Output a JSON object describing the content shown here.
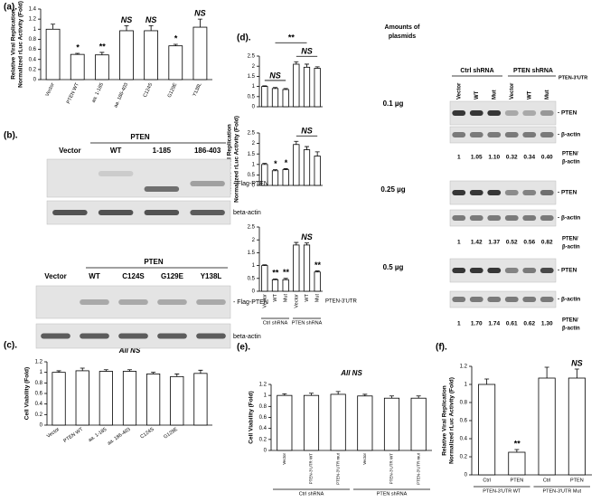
{
  "panel_labels": [
    "(a).",
    "(b).",
    "(c).",
    "(d).",
    "(e).",
    "(f)."
  ],
  "chart_data": [
    {
      "type": "bar",
      "ylabel": [
        "Relative Viral Replication",
        "Normalized rLuc Activity (Fold)"
      ],
      "categories": [
        "Vector",
        "PTEN WT",
        "aa. 1-185",
        "aa. 186-403",
        "C124S",
        "G129E",
        "Y138L"
      ],
      "values": [
        1,
        0.5,
        0.49,
        0.97,
        0.97,
        0.67,
        1.04
      ],
      "errors": [
        0.1,
        0.02,
        0.05,
        0.1,
        0.1,
        0.03,
        0.16
      ],
      "annotations": [
        null,
        "*",
        "**",
        "NS",
        "NS",
        "*",
        "NS"
      ],
      "ylim": [
        0,
        1.4
      ],
      "yticks": [
        0,
        0.2,
        0.4,
        0.6,
        0.8,
        1,
        1.2,
        1.4
      ],
      "color": "#ffffff"
    },
    {
      "type": "bar",
      "title": "All NS",
      "ylabel": [
        "Cell Viability (Fold)"
      ],
      "categories": [
        "Vector",
        "PTEN WT",
        "aa. 1-185",
        "aa. 186-403",
        "C124S",
        "G129E",
        null
      ],
      "values": [
        1,
        1.03,
        1.02,
        1.02,
        0.97,
        0.92,
        0.98
      ],
      "errors": [
        0.03,
        0.05,
        0.03,
        0.03,
        0.03,
        0.05,
        0.06
      ],
      "ylim": [
        0,
        1.2
      ],
      "yticks": [
        0,
        0.2,
        0.4,
        0.6,
        0.8,
        1,
        1.2
      ],
      "color": "#ffffff"
    },
    {
      "type": "bar",
      "values": [
        1,
        0.9,
        0.85,
        2.1,
        1.95,
        1.9
      ],
      "errors": [
        0.03,
        0.05,
        0.05,
        0.12,
        0.15,
        0.07
      ],
      "brackets": [
        {
          "text": "NS",
          "from": 0,
          "to": 2
        },
        {
          "text": "NS",
          "from": 3,
          "to": 5
        },
        {
          "text": "**",
          "from": 1,
          "to": 4
        }
      ],
      "ylim": [
        0,
        2.5
      ],
      "yticks": [
        0,
        0.5,
        1,
        1.5,
        2,
        2.5
      ],
      "color": "#ffffff"
    },
    {
      "type": "bar",
      "ylabel": [
        "Relative Viral Replication",
        "Normalized rLuc Activity (Fold)"
      ],
      "values": [
        1,
        0.7,
        0.75,
        1.95,
        1.7,
        1.4
      ],
      "errors": [
        0.05,
        0.05,
        0.05,
        0.15,
        0.15,
        0.2
      ],
      "annotations": [
        null,
        "*",
        "*",
        null,
        null,
        null
      ],
      "brackets": [
        {
          "text": "NS",
          "from": 3,
          "to": 5
        }
      ],
      "ylim": [
        0,
        2.5
      ],
      "yticks": [
        0,
        0.5,
        1,
        1.5,
        2,
        2.5
      ],
      "color": "#ffffff"
    },
    {
      "type": "bar",
      "categories": [
        "Vector",
        "WT",
        "Mut",
        "Vector",
        "WT",
        "Mut"
      ],
      "groups": [
        "Ctrl shRNA",
        "PTEN shRNA"
      ],
      "xlabel": "PTEN-3'UTR",
      "values": [
        1,
        0.45,
        0.45,
        1.8,
        1.8,
        0.75
      ],
      "errors": [
        0.03,
        0.03,
        0.05,
        0.1,
        0.08,
        0.04
      ],
      "annotations": [
        null,
        "**",
        "**",
        null,
        "NS",
        "**"
      ],
      "ylim": [
        0,
        2.5
      ],
      "yticks": [
        0,
        0.5,
        1,
        1.5,
        2,
        2.5
      ],
      "color": "#ffffff"
    },
    {
      "type": "bar",
      "title": "All NS",
      "ylabel": [
        "Cell Viability (Fold)"
      ],
      "categories": [
        "Vector",
        "PTEN-3'UTR WT",
        "PTEN-3'UTR mut",
        "Vector",
        "PTEN-3'UTR WT",
        "PTEN-3'UTR mut"
      ],
      "groups": [
        "Ctrl shRNA",
        "PTEN shRNA"
      ],
      "values": [
        1,
        1,
        1.02,
        0.99,
        0.95,
        0.95
      ],
      "errors": [
        0.03,
        0.04,
        0.05,
        0.03,
        0.04,
        0.04
      ],
      "ylim": [
        0,
        1.2
      ],
      "yticks": [
        0,
        0.2,
        0.4,
        0.6,
        0.8,
        1,
        1.2
      ],
      "color": "#ffffff"
    },
    {
      "type": "bar",
      "ylabel": [
        "Relative Viral Replication",
        "Normalized rLuc Activity (Fold)"
      ],
      "categories": [
        "Ctrl",
        "PTEN",
        "Ctrl",
        "PTEN"
      ],
      "groups": [
        "PTEN-3'UTR WT",
        "PTEN-3'UTR Mut"
      ],
      "values": [
        1,
        0.25,
        1.07,
        1.07
      ],
      "errors": [
        0.06,
        0.03,
        0.12,
        0.1
      ],
      "annotations": [
        null,
        "**",
        null,
        "NS"
      ],
      "ylim": [
        0,
        1.2
      ],
      "yticks": [
        0,
        0.2,
        0.4,
        0.6,
        0.8,
        1,
        1.2
      ],
      "color": "#ffffff"
    }
  ],
  "blot_b1": {
    "header": "PTEN",
    "lanes": [
      "Vector",
      "WT",
      "1-185",
      "186-403"
    ],
    "bands": [
      "- Flag-PTEN",
      "beta-actin"
    ]
  },
  "blot_b2": {
    "header": "PTEN",
    "lanes": [
      "Vector",
      "WT",
      "C124S",
      "G129E",
      "Y138L"
    ],
    "bands": [
      "- Flag-PTEN",
      "beta-actin"
    ]
  },
  "blot_d": {
    "amounts_title": [
      "Amounts of",
      "plasmids"
    ],
    "amounts": [
      "0.1 µg",
      "0.25 µg",
      "0.5 µg"
    ],
    "groups": [
      "Ctrl shRNA",
      "PTEN shRNA"
    ],
    "utr_label": "PTEN-3'UTR",
    "lanes": [
      "Vector",
      "WT",
      "Mut",
      "Vector",
      "WT",
      "Mut"
    ],
    "bands": [
      "- PTEN",
      "- β-actin"
    ],
    "ratio_label": [
      "PTEN/",
      "β-actin"
    ],
    "ratios": [
      [
        "1",
        "1.05",
        "1.10",
        "0.32",
        "0.34",
        "0.40"
      ],
      [
        "1",
        "1.42",
        "1.37",
        "0.52",
        "0.56",
        "0.82"
      ],
      [
        "1",
        "1.70",
        "1.74",
        "0.61",
        "0.62",
        "1.30"
      ]
    ]
  }
}
